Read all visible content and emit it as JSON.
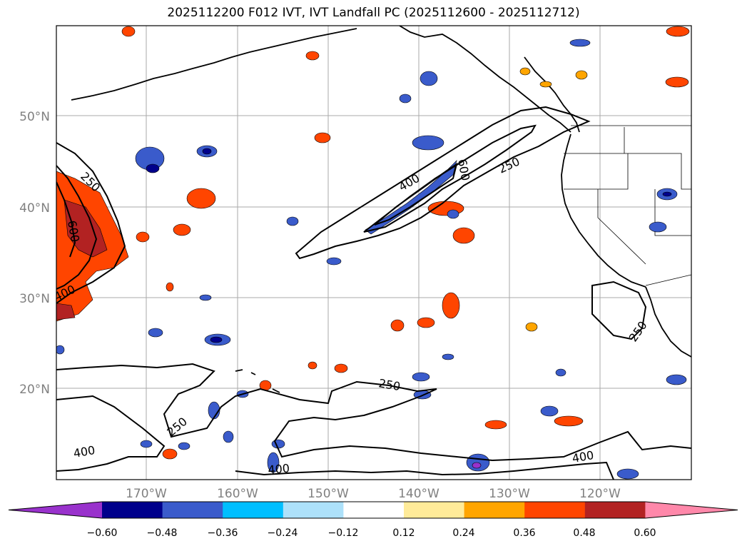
{
  "title": "2025112200 F012 IVT, IVT Landfall PC (2025112600 - 2025112712)",
  "map": {
    "lat_labels": [
      "50°N",
      "40°N",
      "30°N",
      "20°N"
    ],
    "lon_labels": [
      "170°W",
      "160°W",
      "150°W",
      "140°W",
      "130°W",
      "120°W"
    ],
    "contour_labels": [
      "250",
      "600",
      "400",
      "400",
      "600",
      "250",
      "250",
      "250",
      "250",
      "400",
      "400",
      "400"
    ]
  },
  "colorbar": {
    "colors": [
      "#9932CC",
      "#00008B",
      "#3A5BCB",
      "#00BFFF",
      "#ADE1FA",
      "#FFFFFF",
      "#FFEB99",
      "#FFA500",
      "#FF4500",
      "#B22222",
      "#FF88AA"
    ],
    "ticks": [
      "−0.60",
      "−0.48",
      "−0.36",
      "−0.24",
      "−0.12",
      "0.12",
      "0.24",
      "0.36",
      "0.48",
      "0.60"
    ]
  }
}
